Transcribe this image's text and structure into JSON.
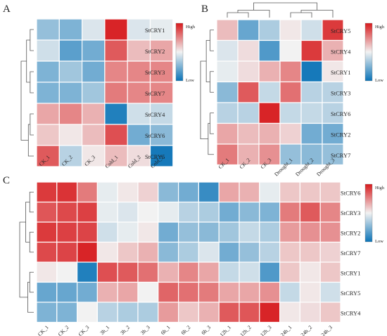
{
  "figure": {
    "background": "#ffffff"
  },
  "palette": {
    "low": "#0a73b7",
    "mid": "#f2f2f2",
    "high": "#d7191c"
  },
  "legend": {
    "high_label": "High",
    "low_label": "Low"
  },
  "chart_data": [
    {
      "type": "heatmap",
      "panel_label": "A",
      "columns": [
        "CK_1",
        "CK_2",
        "CK_3",
        "Cold_1",
        "Cold_2",
        "Cold_3"
      ],
      "rows": [
        "StCRY1",
        "StCRY2",
        "StCRY3",
        "StCRY7",
        "StCRY4",
        "StCRY6",
        "StCRY5"
      ],
      "row_order": [
        0,
        1,
        2,
        3,
        4,
        5,
        6
      ],
      "col_order": [
        0,
        1,
        2,
        3,
        4,
        5
      ],
      "values": [
        [
          -0.4,
          -0.5,
          -0.1,
          0.95,
          -0.1,
          -0.05
        ],
        [
          -0.15,
          -0.65,
          -0.55,
          0.7,
          0.25,
          0.35
        ],
        [
          -0.5,
          -0.35,
          -0.55,
          0.5,
          0.5,
          0.5
        ],
        [
          -0.5,
          -0.5,
          -0.35,
          0.55,
          0.5,
          0.5
        ],
        [
          0.35,
          0.5,
          0.3,
          -0.9,
          -0.15,
          -0.2
        ],
        [
          0.2,
          0.05,
          0.25,
          0.75,
          -0.55,
          -0.45
        ],
        [
          0.7,
          -0.25,
          0.05,
          0.25,
          0.1,
          -0.95
        ]
      ],
      "color_scale": [
        "Low",
        "High"
      ]
    },
    {
      "type": "heatmap",
      "panel_label": "B",
      "columns": [
        "CK_1",
        "CK_2",
        "CK_3",
        "Drought_1",
        "Drought_2",
        "Drought_3"
      ],
      "rows": [
        "StCRY5",
        "StCRY4",
        "StCRY1",
        "StCRY3",
        "StCRY6",
        "StCRY2",
        "StCRY7"
      ],
      "row_order": [
        0,
        1,
        2,
        3,
        4,
        5,
        6
      ],
      "col_order": [
        0,
        1,
        2,
        3,
        4,
        5
      ],
      "values": [
        [
          0.25,
          -0.6,
          -0.3,
          0.05,
          -0.15,
          0.85
        ],
        [
          -0.1,
          0.1,
          -0.7,
          0.0,
          0.85,
          0.3
        ],
        [
          -0.05,
          0.1,
          0.3,
          0.5,
          -0.95,
          0.05
        ],
        [
          -0.45,
          0.7,
          -0.2,
          0.6,
          -0.25,
          -0.25
        ],
        [
          -0.25,
          -0.25,
          0.95,
          -0.2,
          -0.2,
          -0.25
        ],
        [
          0.35,
          0.25,
          0.3,
          0.15,
          -0.55,
          -0.55
        ],
        [
          0.55,
          0.3,
          0.45,
          -0.4,
          -0.45,
          -0.4
        ]
      ],
      "color_scale": [
        "Low",
        "High"
      ]
    },
    {
      "type": "heatmap",
      "panel_label": "C",
      "columns": [
        "CK_1",
        "CK_2",
        "CK_3",
        "3h_1",
        "3h_2",
        "3h_3",
        "6h_1",
        "6h_2",
        "6h_3",
        "12h_1",
        "12h_2",
        "12h_3",
        "24h_1",
        "24h_2",
        "24h_3"
      ],
      "rows": [
        "StCRY6",
        "StCRY3",
        "StCRY2",
        "StCRY7",
        "StCRY1",
        "StCRY5",
        "StCRY4"
      ],
      "row_order": [
        0,
        1,
        2,
        3,
        4,
        5,
        6
      ],
      "col_order": [
        0,
        1,
        2,
        3,
        4,
        5,
        6,
        7,
        8,
        9,
        10,
        11,
        12,
        13,
        14
      ],
      "values": [
        [
          0.85,
          0.88,
          0.55,
          -0.05,
          0.05,
          0.15,
          -0.45,
          -0.55,
          -0.8,
          0.35,
          0.3,
          -0.05,
          0.2,
          0.2,
          0.2
        ],
        [
          0.72,
          0.78,
          0.82,
          -0.05,
          -0.1,
          0.0,
          -0.05,
          -0.25,
          -0.3,
          -0.55,
          -0.45,
          -0.5,
          0.55,
          0.7,
          0.5
        ],
        [
          0.85,
          0.82,
          0.8,
          -0.15,
          -0.05,
          0.05,
          -0.55,
          -0.4,
          -0.45,
          -0.35,
          -0.2,
          -0.3,
          0.4,
          0.45,
          0.45
        ],
        [
          0.78,
          0.8,
          0.95,
          0.05,
          0.2,
          0.3,
          -0.45,
          -0.3,
          -0.1,
          -0.55,
          -0.4,
          -0.25,
          0.2,
          0.2,
          0.15
        ],
        [
          0.05,
          0.0,
          -0.9,
          0.75,
          0.7,
          0.6,
          0.3,
          0.5,
          0.35,
          -0.2,
          -0.15,
          -0.7,
          0.2,
          0.05,
          0.2
        ],
        [
          -0.6,
          -0.6,
          -0.55,
          0.3,
          0.35,
          0.0,
          0.65,
          0.6,
          0.55,
          0.35,
          0.35,
          0.45,
          -0.2,
          0.05,
          -0.15
        ],
        [
          -0.5,
          -0.5,
          0.0,
          -0.25,
          -0.3,
          -0.3,
          0.4,
          0.2,
          0.3,
          0.7,
          0.72,
          0.95,
          0.05,
          0.1,
          0.2
        ]
      ],
      "color_scale": [
        "Low",
        "High"
      ]
    }
  ]
}
